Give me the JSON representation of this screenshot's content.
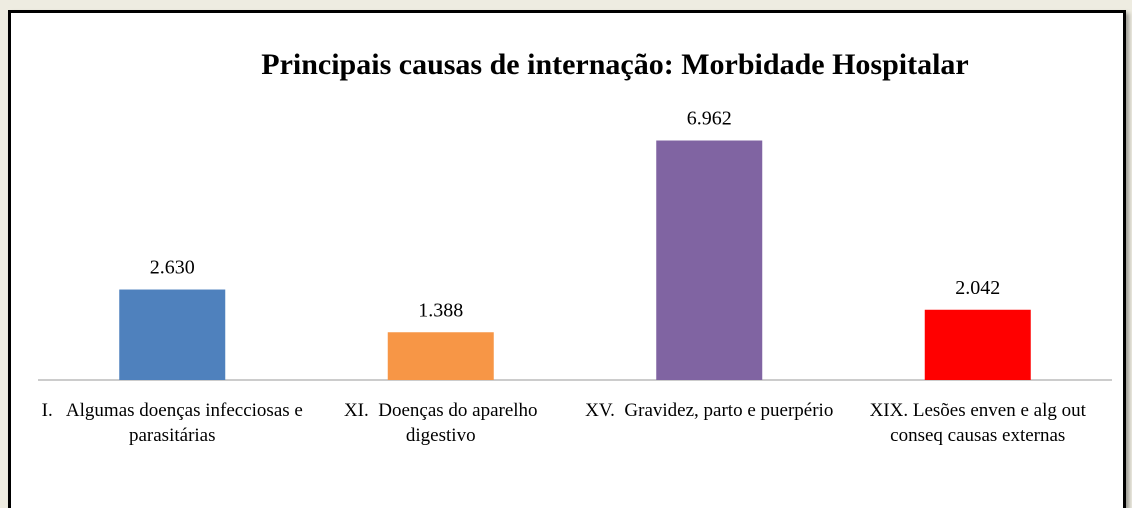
{
  "chart_data": {
    "type": "bar",
    "title": "Principais causas de internação: Morbidade Hospitalar",
    "categories": [
      "I.   Algumas doenças infecciosas e parasitárias",
      "XI.  Doenças do aparelho digestivo",
      "XV.  Gravidez, parto e puerpério",
      "XIX. Lesões enven e alg out conseq causas externas"
    ],
    "values": [
      2630,
      1388,
      6962,
      2042
    ],
    "value_labels": [
      "2.630",
      "1.388",
      "6.962",
      "2.042"
    ],
    "colors": [
      "#4f81bd",
      "#f79646",
      "#8064a2",
      "#ff0000"
    ],
    "ylim": [
      0,
      7500
    ]
  }
}
